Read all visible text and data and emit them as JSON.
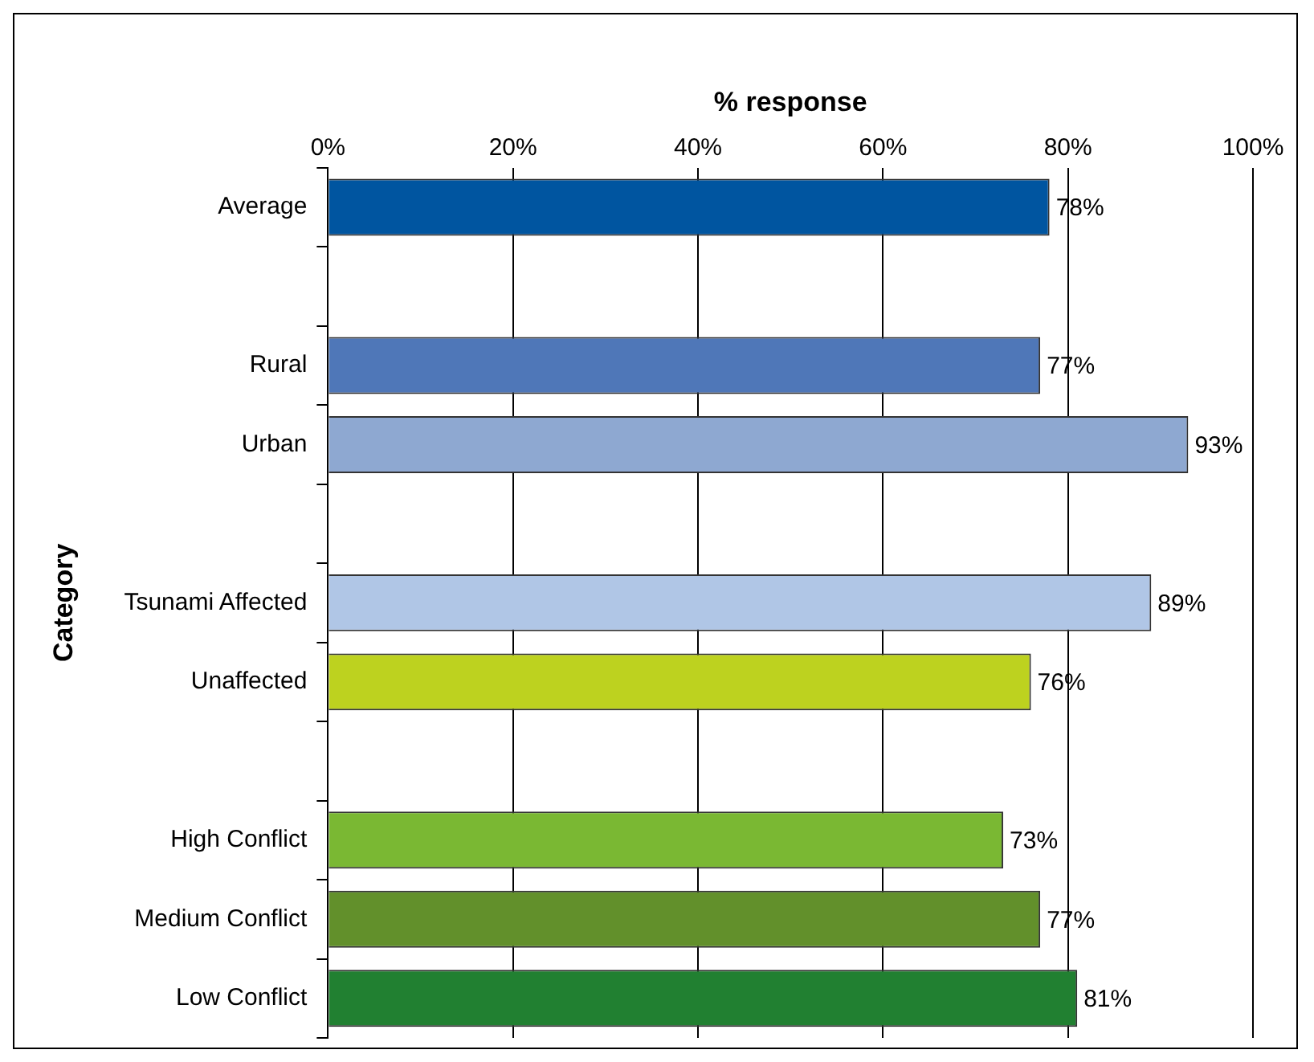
{
  "chart_data": {
    "type": "bar",
    "orientation": "horizontal",
    "title": "% response",
    "ylabel": "Category",
    "categories": [
      "Average",
      null,
      "Rural",
      "Urban",
      null,
      "Tsunami Affected",
      "Unaffected",
      null,
      "High Conflict",
      "Medium Conflict",
      "Low Conflict"
    ],
    "values": [
      78,
      null,
      77,
      93,
      null,
      89,
      76,
      null,
      73,
      77,
      81
    ],
    "value_labels": [
      "78%",
      null,
      "77%",
      "93%",
      null,
      "89%",
      "76%",
      null,
      "73%",
      "77%",
      "81%"
    ],
    "colors": [
      "#0055a0",
      "#ffffff",
      "#4f77b8",
      "#8ea8d1",
      "#ffffff",
      "#b0c6e6",
      "#bdd21f",
      "#ffffff",
      "#7ab833",
      "#62902b",
      "#218031"
    ],
    "xlim": [
      0,
      100
    ],
    "xticks": [
      {
        "value": 0,
        "label": "0%"
      },
      {
        "value": 20,
        "label": "20%"
      },
      {
        "value": 40,
        "label": "40%"
      },
      {
        "value": 60,
        "label": "60%"
      },
      {
        "value": 80,
        "label": "80%"
      },
      {
        "value": 100,
        "label": "100%"
      }
    ],
    "grid": "x",
    "legend": false
  }
}
